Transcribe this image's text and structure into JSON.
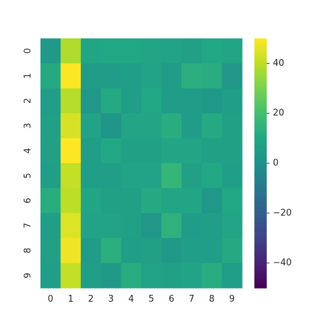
{
  "chart_data": {
    "type": "heatmap",
    "title": "",
    "xlabel": "",
    "ylabel": "",
    "x_categories": [
      "0",
      "1",
      "2",
      "3",
      "4",
      "5",
      "6",
      "7",
      "8",
      "9"
    ],
    "y_categories": [
      "0",
      "1",
      "2",
      "3",
      "4",
      "5",
      "6",
      "7",
      "8",
      "9"
    ],
    "values": [
      [
        4,
        38,
        9,
        10,
        10,
        9,
        8,
        7,
        10,
        9
      ],
      [
        11,
        51,
        5,
        5,
        6,
        8,
        5,
        13,
        12,
        3
      ],
      [
        6,
        39,
        3,
        11,
        6,
        10,
        5,
        5,
        4,
        6
      ],
      [
        7,
        44,
        8,
        2,
        9,
        9,
        12,
        5,
        11,
        7
      ],
      [
        7,
        50,
        6,
        10,
        7,
        7,
        9,
        9,
        7,
        7
      ],
      [
        6,
        41,
        6,
        6,
        8,
        8,
        16,
        7,
        10,
        6
      ],
      [
        12,
        40,
        9,
        7,
        7,
        11,
        9,
        9,
        3,
        10
      ],
      [
        6,
        45,
        8,
        8,
        7,
        3,
        14,
        5,
        6,
        9
      ],
      [
        7,
        48,
        5,
        13,
        6,
        7,
        4,
        6,
        6,
        11
      ],
      [
        6,
        41,
        6,
        4,
        12,
        8,
        7,
        8,
        12,
        6
      ]
    ],
    "colormap": "viridis",
    "vmin": -50,
    "vmax": 50,
    "colorbar_ticks": [
      40,
      20,
      0,
      -20,
      -40
    ],
    "colorbar_tick_labels": [
      "40",
      "20",
      "0",
      "−20",
      "−40"
    ],
    "grid": false,
    "colorbar_placement": "right"
  }
}
